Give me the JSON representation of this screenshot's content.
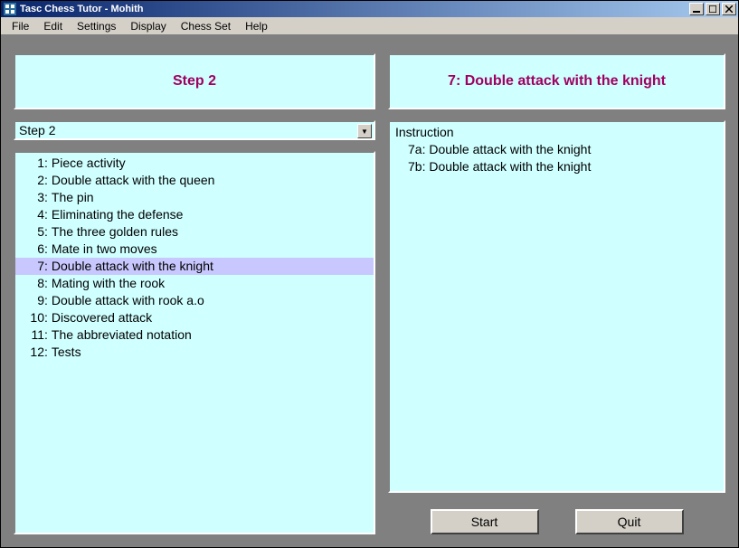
{
  "window": {
    "title": "Tasc Chess Tutor - Mohith"
  },
  "menu": {
    "items": [
      "File",
      "Edit",
      "Settings",
      "Display",
      "Chess Set",
      "Help"
    ]
  },
  "left": {
    "header": "Step 2",
    "dropdown_value": "Step 2",
    "items": [
      {
        "n": "1",
        "t": "Piece activity"
      },
      {
        "n": "2",
        "t": "Double attack with the queen"
      },
      {
        "n": "3",
        "t": "The pin"
      },
      {
        "n": "4",
        "t": "Eliminating the defense"
      },
      {
        "n": "5",
        "t": "The three golden rules"
      },
      {
        "n": "6",
        "t": "Mate in two moves"
      },
      {
        "n": "7",
        "t": "Double attack with the knight"
      },
      {
        "n": "8",
        "t": "Mating with the rook"
      },
      {
        "n": "9",
        "t": "Double attack with rook a.o"
      },
      {
        "n": "10",
        "t": "Discovered attack"
      },
      {
        "n": "11",
        "t": "The abbreviated notation"
      },
      {
        "n": "12",
        "t": "Tests"
      }
    ],
    "selected_index": 6
  },
  "right": {
    "header": "7: Double attack with the knight",
    "instruction_label": "Instruction",
    "items": [
      {
        "id": "7a",
        "t": "Double attack with the knight"
      },
      {
        "id": "7b",
        "t": "Double attack with the knight"
      }
    ],
    "selected_index": 0
  },
  "buttons": {
    "start": "Start",
    "quit": "Quit"
  },
  "colors": {
    "panel_bg": "#cfffff",
    "title_text": "#a00060",
    "sel_light": "#c8c8ff",
    "sel_dark": "#0000c0",
    "chrome": "#d4d0c8",
    "client_bg": "#808080",
    "titlebar_start": "#08246b",
    "titlebar_end": "#a6caf0"
  }
}
